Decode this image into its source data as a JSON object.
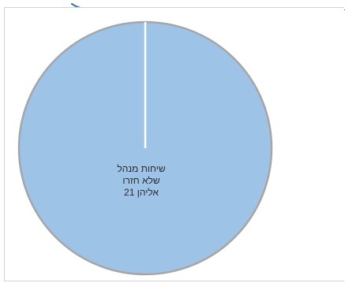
{
  "chart_data": {
    "type": "pie",
    "slices": [
      {
        "label_lines": [
          "שיחות מנהל",
          "שלא חזרו",
          "אליהן  21"
        ],
        "value": 21,
        "color": "#9dc3e6"
      }
    ],
    "edge_color": "#a6a6a6",
    "separator_color": "#ffffff",
    "accent_color": "#2e75b6"
  }
}
